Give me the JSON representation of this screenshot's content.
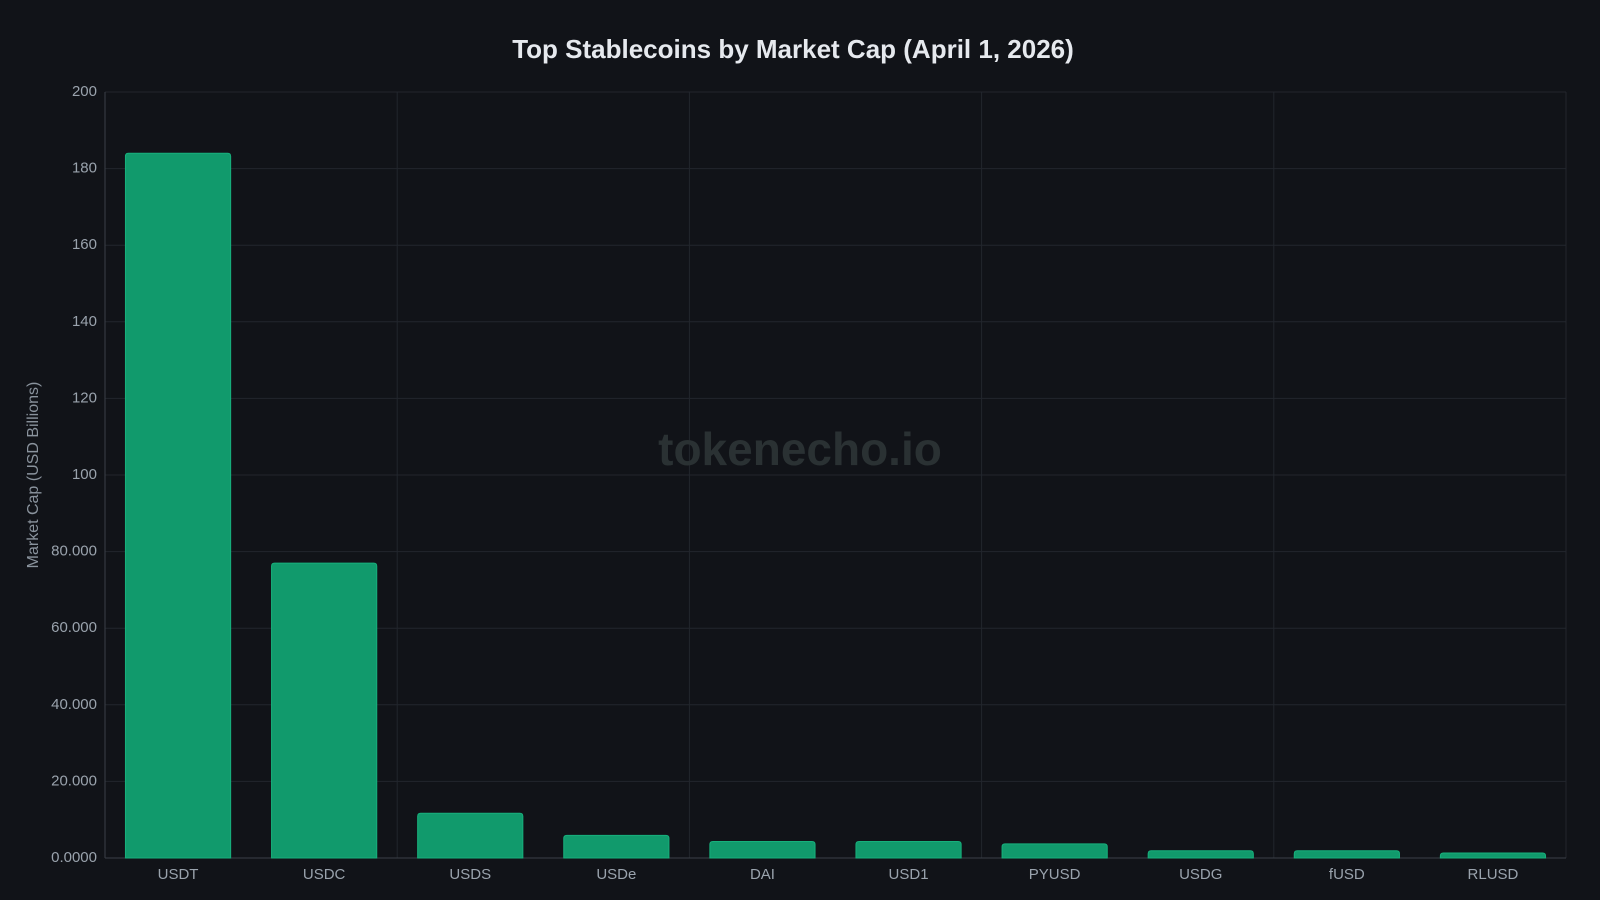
{
  "chart_data": {
    "type": "bar",
    "title": "Top Stablecoins by Market Cap (April 1, 2026)",
    "y_label": "Market Cap (USD Billions)",
    "watermark": "tokenecho.io",
    "categories": [
      "USDT",
      "USDC",
      "USDS",
      "USDe",
      "DAI",
      "USD1",
      "PYUSD",
      "USDG",
      "fUSD",
      "RLUSD"
    ],
    "values": [
      184.0,
      77.0,
      11.7,
      5.9,
      4.3,
      4.3,
      3.7,
      1.9,
      1.9,
      1.3
    ],
    "color": "#119a6c",
    "ylim": [
      0,
      200
    ],
    "yticks": [
      {
        "value": 0,
        "label": "0.0000"
      },
      {
        "value": 20,
        "label": "20.000"
      },
      {
        "value": 40,
        "label": "40.000"
      },
      {
        "value": 60,
        "label": "60.000"
      },
      {
        "value": 80,
        "label": "80.000"
      },
      100,
      120,
      140,
      160,
      180,
      200
    ],
    "grid": true
  }
}
